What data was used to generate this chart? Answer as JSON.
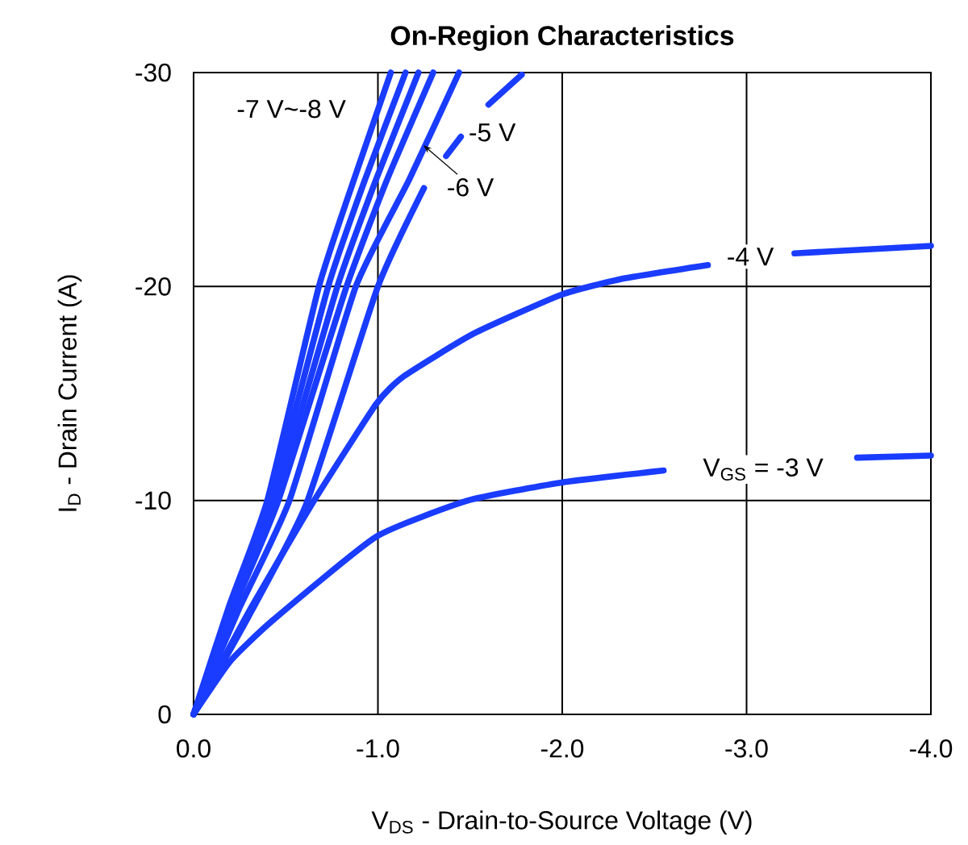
{
  "chart_data": {
    "type": "line",
    "title": "On-Region Characteristics",
    "xlabel": "V$_{DS}$ - Drain-to-Source Voltage (V)",
    "ylabel": "I$_{D}$ - Drain Current (A)",
    "xlim": [
      0,
      -4
    ],
    "ylim": [
      0,
      -30
    ],
    "xticks": [
      {
        "value": 0,
        "label": "0.0"
      },
      {
        "value": -1,
        "label": "-1.0"
      },
      {
        "value": -2,
        "label": "-2.0"
      },
      {
        "value": -3,
        "label": "-3.0"
      },
      {
        "value": -4,
        "label": "-4.0"
      }
    ],
    "yticks": [
      0,
      -10,
      -20,
      -30
    ],
    "grid": true,
    "line_style": "solid",
    "marker": "none",
    "series": [
      {
        "color": "#1a3cff",
        "x": [
          0,
          -0.19,
          -0.4,
          -0.68,
          -0.87,
          -1.07
        ],
        "values": [
          0,
          -5,
          -10,
          -20,
          -25,
          -30
        ]
      },
      {
        "color": "#1a3cff",
        "x": [
          0,
          -0.2,
          -0.42,
          -0.73,
          -0.93,
          -1.15
        ],
        "values": [
          0,
          -5,
          -10,
          -20,
          -25,
          -30
        ]
      },
      {
        "color": "#1a3cff",
        "x": [
          0,
          -0.21,
          -0.44,
          -0.78,
          -0.99,
          -1.22
        ],
        "values": [
          0,
          -5,
          -10,
          -20,
          -25,
          -30
        ]
      },
      {
        "color": "#1a3cff",
        "x": [
          0,
          -0.22,
          -0.46,
          -0.83,
          -1.05,
          -1.3
        ],
        "values": [
          0,
          -5,
          -10,
          -20,
          -25,
          -30
        ]
      },
      {
        "color": "#1a3cff",
        "x": [
          0,
          -0.25,
          -0.52,
          -0.88,
          -1.17,
          -1.44
        ],
        "values": [
          0,
          -5,
          -10,
          -20,
          -25,
          -30
        ]
      },
      {
        "color": "#1a3cff",
        "x": [
          0,
          -0.3,
          -0.61,
          -1.0,
          -1.25,
          -1.31,
          -1.37,
          -1.45,
          -1.52,
          -1.6,
          -1.78
        ],
        "values": [
          0,
          -4.6,
          -9.8,
          -20,
          -24.6,
          null,
          -26.1,
          -27,
          null,
          -28.5,
          -29.9
        ]
      },
      {
        "color": "#1a3cff",
        "x": [
          0,
          -0.3,
          -0.64,
          -0.99,
          -1.14,
          -1.52,
          -1.99,
          -2.32,
          -2.79,
          -3.0,
          -3.26,
          -4.0
        ],
        "values": [
          0,
          -4.8,
          -9.8,
          -14.5,
          -15.8,
          -17.8,
          -19.6,
          -20.35,
          -21,
          null,
          -21.55,
          -21.9
        ]
      },
      {
        "color": "#1a3cff",
        "x": [
          0,
          -0.2,
          -0.43,
          -0.99,
          -1.49,
          -1.99,
          -2.55,
          -3.0,
          -3.6,
          -4.0
        ],
        "values": [
          0,
          -2.5,
          -4.4,
          -8.3,
          -10,
          -10.83,
          -11.4,
          null,
          -12,
          -12.1
        ]
      }
    ],
    "annotations": [
      "-7 V~-8 V",
      "-5 V",
      {
        "text": "-6 V",
        "x": -1.23,
        "y": -26.75
      },
      "-4 V",
      "V$_{GS}$ = -3 V"
    ]
  }
}
